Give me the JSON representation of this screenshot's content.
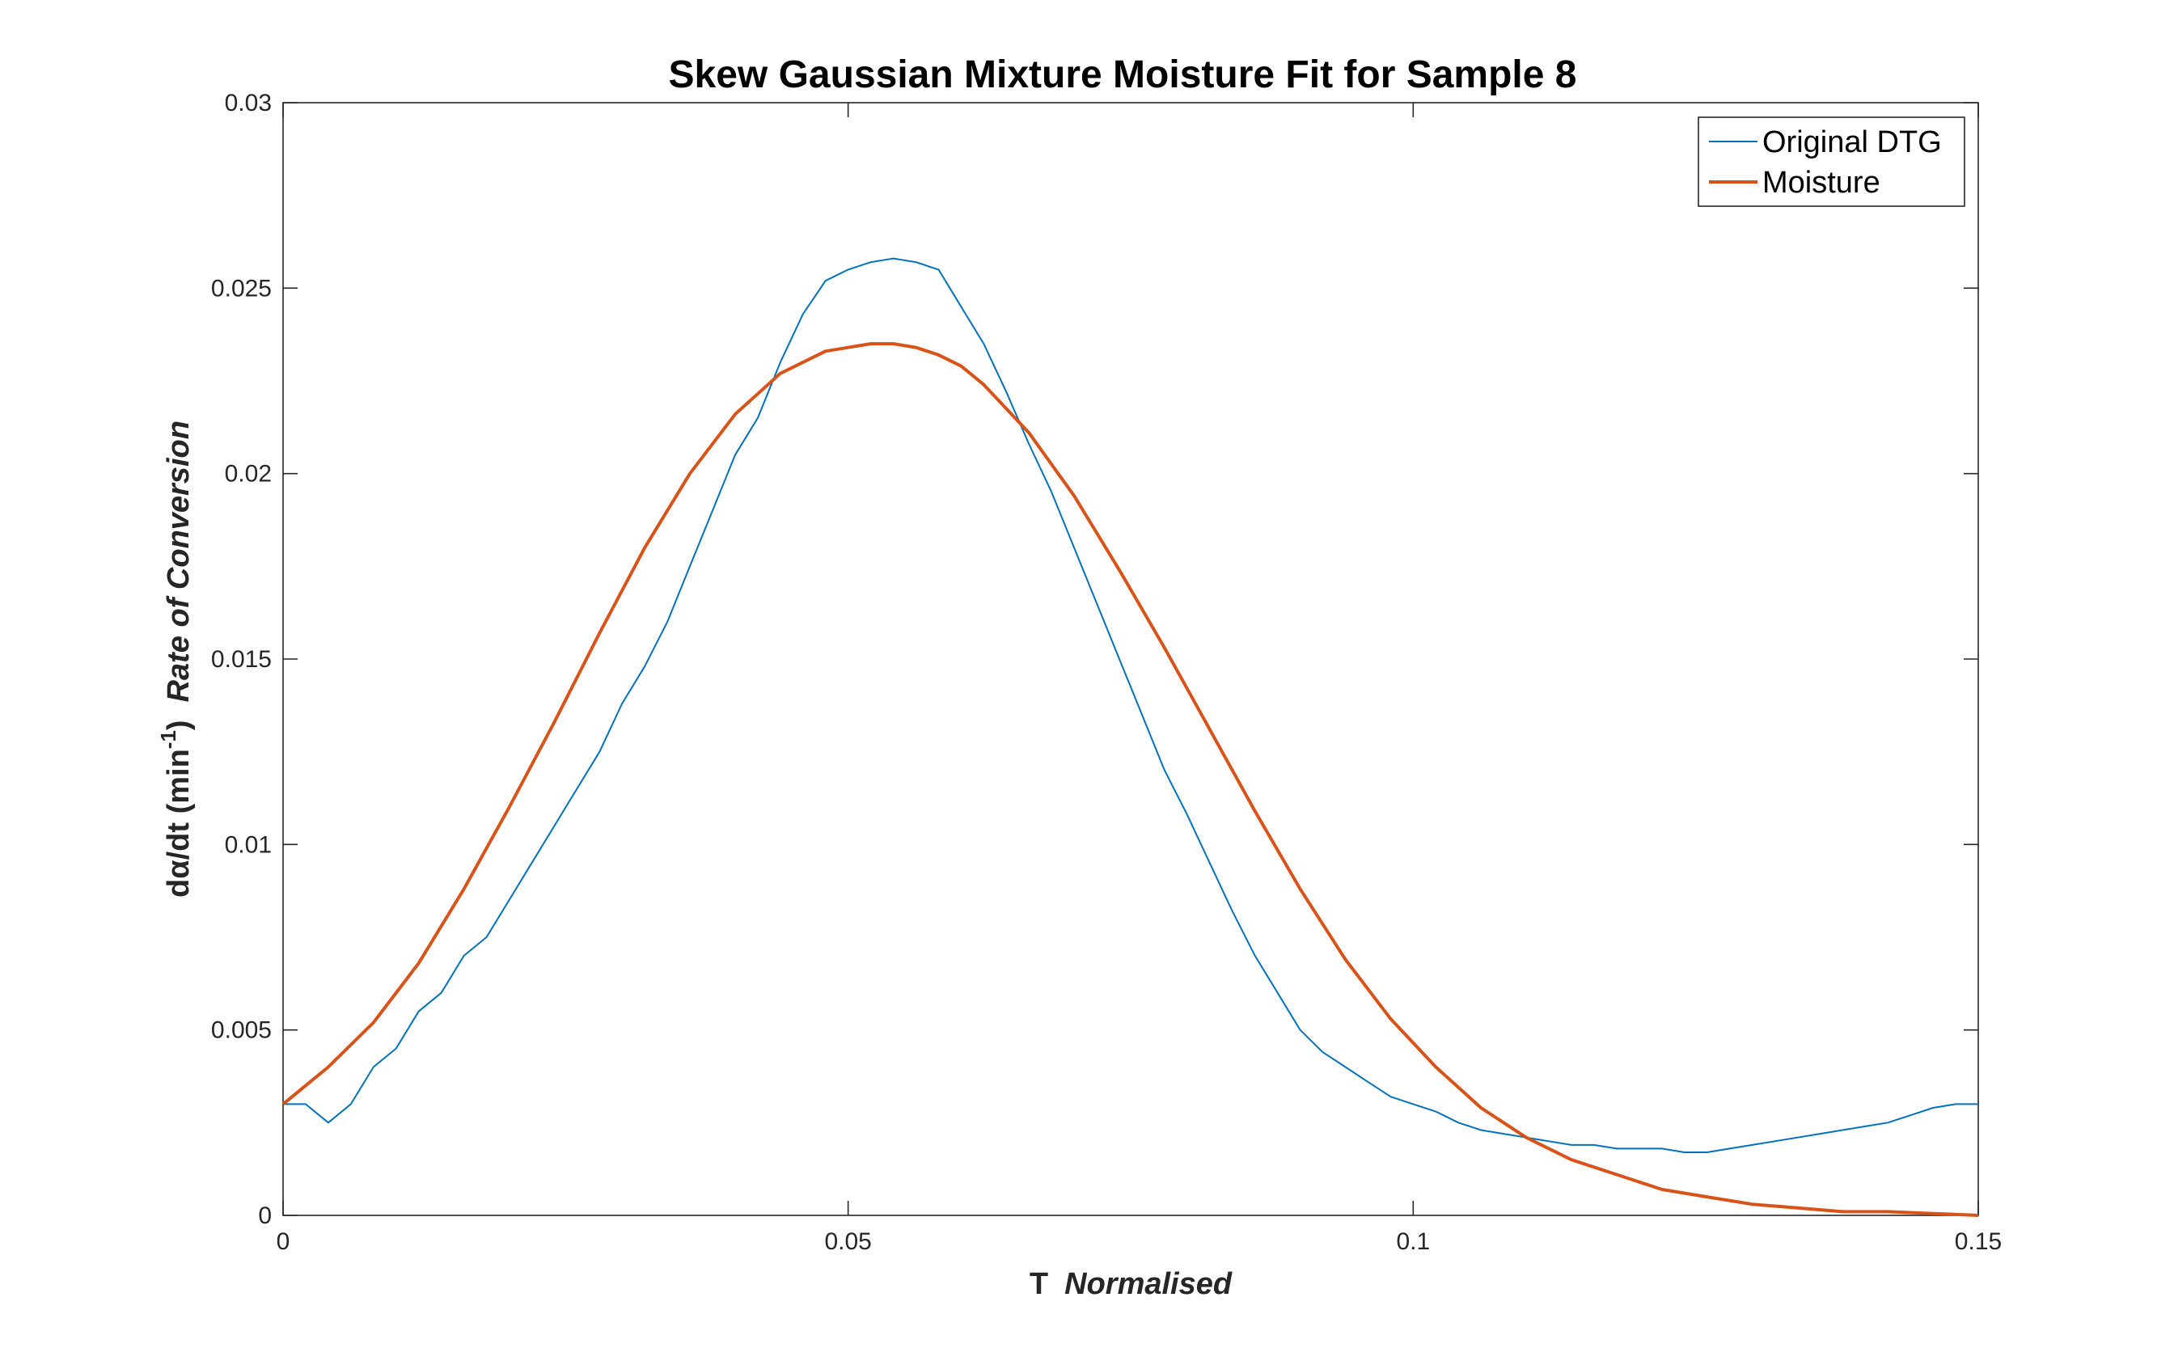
{
  "chart_data": {
    "type": "line",
    "title": "Skew Gaussian Mixture Moisture Fit for Sample 8",
    "xlabel": {
      "main": "T",
      "italic": "Normalised"
    },
    "ylabel": {
      "main": "dα/dt (min",
      "sup": "-1",
      "close": ")",
      "italic": "Rate of Conversion"
    },
    "xlim": [
      0,
      0.15
    ],
    "ylim": [
      0,
      0.03
    ],
    "xticks": [
      0,
      0.05,
      0.1,
      0.15
    ],
    "xtick_labels": [
      "0",
      "0.05",
      "0.1",
      "0.15"
    ],
    "yticks": [
      0,
      0.005,
      0.01,
      0.015,
      0.02,
      0.025,
      0.03
    ],
    "ytick_labels": [
      "0",
      "0.005",
      "0.01",
      "0.015",
      "0.02",
      "0.025",
      "0.03"
    ],
    "grid": false,
    "legend_position": "top-right",
    "series": [
      {
        "name": "Original DTG",
        "color": "#0072BD",
        "x": [
          0,
          0.002,
          0.004,
          0.006,
          0.008,
          0.01,
          0.012,
          0.014,
          0.016,
          0.018,
          0.02,
          0.022,
          0.024,
          0.026,
          0.028,
          0.03,
          0.032,
          0.034,
          0.036,
          0.038,
          0.04,
          0.042,
          0.044,
          0.046,
          0.048,
          0.05,
          0.052,
          0.054,
          0.056,
          0.058,
          0.06,
          0.062,
          0.064,
          0.066,
          0.068,
          0.07,
          0.072,
          0.074,
          0.076,
          0.078,
          0.08,
          0.082,
          0.084,
          0.086,
          0.088,
          0.09,
          0.092,
          0.094,
          0.096,
          0.098,
          0.1,
          0.102,
          0.104,
          0.106,
          0.108,
          0.11,
          0.112,
          0.114,
          0.116,
          0.118,
          0.12,
          0.122,
          0.124,
          0.126,
          0.128,
          0.13,
          0.132,
          0.134,
          0.136,
          0.138,
          0.14,
          0.142,
          0.144,
          0.146,
          0.148,
          0.15
        ],
        "values": [
          0.003,
          0.003,
          0.0025,
          0.003,
          0.004,
          0.0045,
          0.0055,
          0.006,
          0.007,
          0.0075,
          0.0085,
          0.0095,
          0.0105,
          0.0115,
          0.0125,
          0.0138,
          0.0148,
          0.016,
          0.0175,
          0.019,
          0.0205,
          0.0215,
          0.023,
          0.0243,
          0.0252,
          0.0255,
          0.0257,
          0.0258,
          0.0257,
          0.0255,
          0.0245,
          0.0235,
          0.0222,
          0.0208,
          0.0195,
          0.018,
          0.0165,
          0.015,
          0.0135,
          0.012,
          0.0108,
          0.0095,
          0.0082,
          0.007,
          0.006,
          0.005,
          0.0044,
          0.004,
          0.0036,
          0.0032,
          0.003,
          0.0028,
          0.0025,
          0.0023,
          0.0022,
          0.0021,
          0.002,
          0.0019,
          0.0019,
          0.0018,
          0.0018,
          0.0018,
          0.0017,
          0.0017,
          0.0018,
          0.0019,
          0.002,
          0.0021,
          0.0022,
          0.0023,
          0.0024,
          0.0025,
          0.0027,
          0.0029,
          0.003,
          0.003
        ]
      },
      {
        "name": "Moisture",
        "color": "#D95319",
        "x": [
          0,
          0.004,
          0.008,
          0.012,
          0.016,
          0.02,
          0.024,
          0.028,
          0.032,
          0.036,
          0.04,
          0.044,
          0.048,
          0.05,
          0.052,
          0.054,
          0.056,
          0.058,
          0.06,
          0.062,
          0.066,
          0.07,
          0.074,
          0.078,
          0.082,
          0.086,
          0.09,
          0.094,
          0.098,
          0.102,
          0.106,
          0.11,
          0.114,
          0.118,
          0.122,
          0.126,
          0.13,
          0.134,
          0.138,
          0.142,
          0.146,
          0.15
        ],
        "values": [
          0.003,
          0.004,
          0.0052,
          0.0068,
          0.0088,
          0.011,
          0.0133,
          0.0157,
          0.018,
          0.02,
          0.0216,
          0.0227,
          0.0233,
          0.0234,
          0.0235,
          0.0235,
          0.0234,
          0.0232,
          0.0229,
          0.0224,
          0.0211,
          0.0194,
          0.0174,
          0.0153,
          0.0131,
          0.0109,
          0.0088,
          0.0069,
          0.0053,
          0.004,
          0.0029,
          0.0021,
          0.0015,
          0.0011,
          0.0007,
          0.0005,
          0.0003,
          0.0002,
          0.0001,
          0.0001,
          5e-05,
          0.0
        ]
      }
    ]
  }
}
